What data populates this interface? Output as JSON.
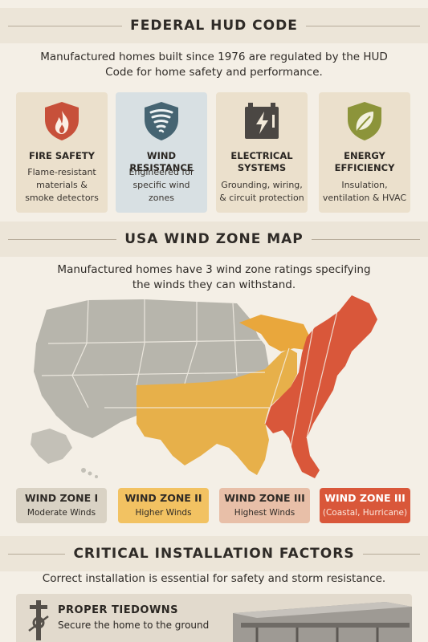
{
  "hud": {
    "title": "FEDERAL HUD CODE",
    "intro_line1": "Manufactured homes built since 1976 are regulated by the HUD",
    "intro_line2": "Code for home safety and performance.",
    "cards": [
      {
        "icon": "flame-shield-icon",
        "title": "FIRE SAFETY",
        "desc1": "Flame-resistant",
        "desc2": "materials &",
        "desc3": "smoke detectors"
      },
      {
        "icon": "tornado-shield-icon",
        "title": "WIND RESISTANCE",
        "desc1": "Engineered for",
        "desc2": "specific wind",
        "desc3": "zones"
      },
      {
        "icon": "battery-bolt-icon",
        "title1": "ELECTRICAL",
        "title2": "SYSTEMS",
        "desc1": "Grounding, wiring,",
        "desc2": "& circuit protection"
      },
      {
        "icon": "leaf-shield-icon",
        "title1": "ENERGY",
        "title2": "EFFICIENCY",
        "desc1": "Insulation,",
        "desc2": "ventilation & HVAC"
      }
    ]
  },
  "wind": {
    "title": "USA WIND ZONE MAP",
    "intro_line1": "Manufactured homes have 3 wind zone ratings specifying",
    "intro_line2": "the winds they can withstand.",
    "zones": [
      {
        "title": "WIND ZONE I",
        "desc": "Moderate Winds",
        "color": "#d9d2c4"
      },
      {
        "title": "WIND ZONE II",
        "desc": "Higher Winds",
        "color": "#f2c262"
      },
      {
        "title": "WIND ZONE III",
        "desc": "Highest Winds",
        "color": "#e8bfa8"
      },
      {
        "title": "WIND ZONE III",
        "desc": "(Coastal, Hurricane)",
        "color": "#d9573a"
      }
    ]
  },
  "install": {
    "title": "CRITICAL INSTALLATION FACTORS",
    "intro": "Correct installation is essential for safety and storm resistance.",
    "tiedown_title": "PROPER TIEDOWNS",
    "tiedown_desc": "Secure the home to the ground"
  },
  "colors": {
    "fire": "#c7503a",
    "wind": "#456472",
    "electric": "#4b4743",
    "energy": "#8c943a",
    "zone1": "#b7b5ac",
    "zone2": "#e7b04a",
    "zone3": "#d9573a"
  }
}
